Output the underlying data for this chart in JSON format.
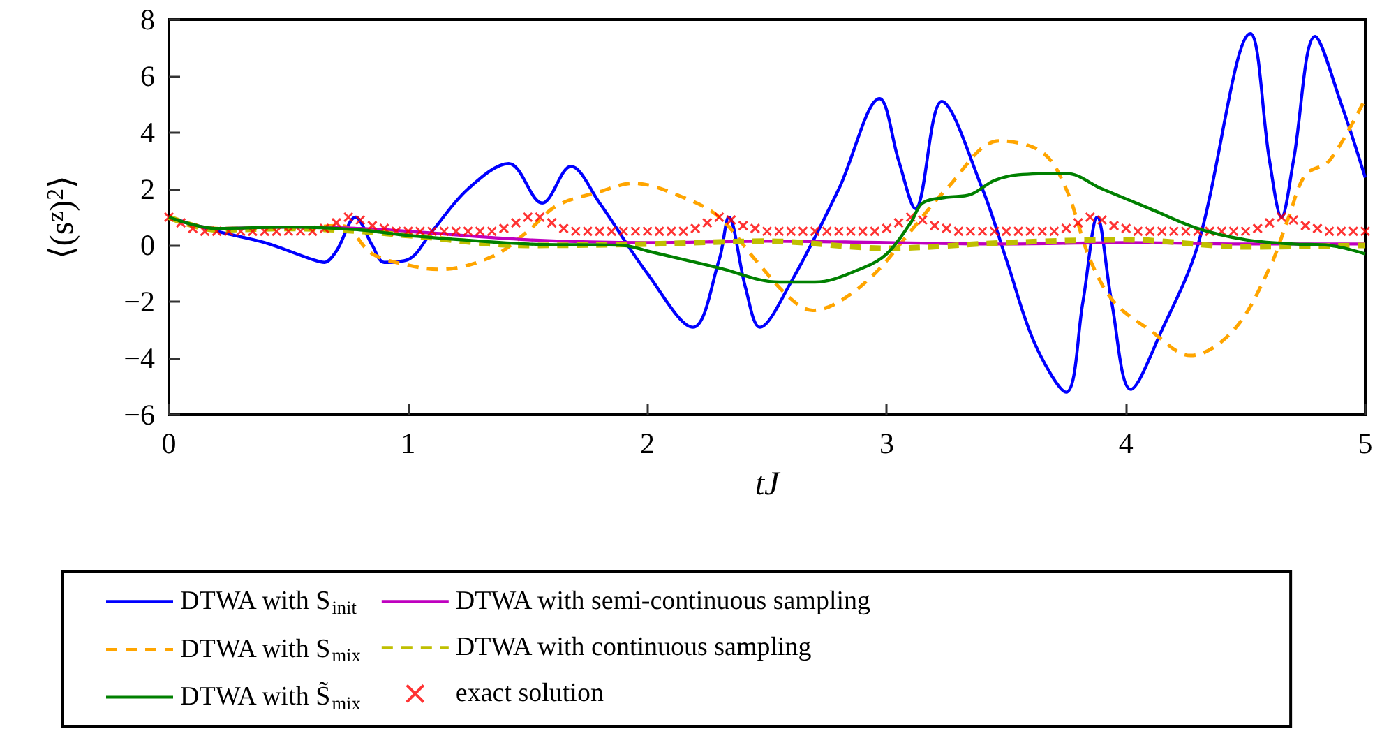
{
  "chart_data": {
    "type": "line",
    "xlabel": "tJ",
    "ylabel": "⟨(s$^{z}$)$^{2}$⟩",
    "xlim": [
      0,
      5
    ],
    "ylim": [
      -6,
      8
    ],
    "xticks": [
      0,
      1,
      2,
      3,
      4,
      5
    ],
    "yticks": [
      -6,
      -4,
      -2,
      0,
      2,
      4,
      6,
      8
    ],
    "grid": false,
    "legend": "bottom",
    "series": [
      {
        "name": "DTWA with S$_{init}$",
        "color": "#0000ff",
        "line_style": "solid",
        "marker": "none",
        "x": [
          0,
          0.2,
          0.4,
          0.6,
          0.65,
          0.7,
          0.78,
          0.85,
          0.9,
          1.0,
          1.1,
          1.25,
          1.42,
          1.56,
          1.68,
          1.8,
          2.0,
          2.19,
          2.3,
          2.34,
          2.41,
          2.47,
          2.6,
          2.8,
          2.97,
          3.05,
          3.12,
          3.23,
          3.4,
          3.5,
          3.62,
          3.75,
          3.82,
          3.88,
          3.94,
          4.02,
          4.15,
          4.3,
          4.52,
          4.6,
          4.65,
          4.7,
          4.79,
          4.9,
          5.0
        ],
        "values": [
          1.0,
          0.5,
          0.1,
          -0.5,
          -0.6,
          -0.2,
          1.0,
          0.0,
          -0.6,
          -0.5,
          0.5,
          2.0,
          2.9,
          1.5,
          2.8,
          1.5,
          -1.0,
          -2.9,
          -0.5,
          1.0,
          -1.5,
          -2.9,
          -1.3,
          2.0,
          5.2,
          3.0,
          1.3,
          5.1,
          2.0,
          -0.5,
          -3.5,
          -5.2,
          -2.0,
          1.0,
          -2.0,
          -5.1,
          -3.0,
          0.0,
          7.5,
          3.0,
          1.0,
          3.0,
          7.4,
          5.0,
          2.4
        ]
      },
      {
        "name": "DTWA with S$_{mix}$",
        "color": "#ffa500",
        "line_style": "dashed",
        "marker": "none",
        "x": [
          0,
          0.2,
          0.5,
          0.72,
          0.85,
          1.0,
          1.13,
          1.35,
          1.5,
          1.62,
          1.8,
          1.94,
          2.15,
          2.3,
          2.45,
          2.6,
          2.69,
          2.8,
          2.95,
          3.1,
          3.25,
          3.47,
          3.65,
          3.75,
          3.85,
          3.95,
          4.1,
          4.27,
          4.45,
          4.6,
          4.68,
          4.75,
          4.85,
          5.0
        ],
        "values": [
          1.0,
          0.6,
          0.6,
          0.7,
          -0.3,
          -0.7,
          -0.85,
          -0.4,
          0.5,
          1.4,
          1.9,
          2.2,
          1.7,
          1.0,
          -0.5,
          -1.9,
          -2.3,
          -2.0,
          -1.0,
          0.5,
          2.0,
          3.7,
          3.3,
          2.0,
          -0.5,
          -2.0,
          -3.0,
          -3.9,
          -3.0,
          -0.8,
          1.0,
          2.5,
          3.0,
          5.2
        ]
      },
      {
        "name": "DTWA with S̃$_{mix}$",
        "color": "#008000",
        "line_style": "solid",
        "marker": "none",
        "x": [
          0,
          0.2,
          0.5,
          0.8,
          1.0,
          1.5,
          1.9,
          2.0,
          2.3,
          2.55,
          2.7,
          2.9,
          3.0,
          3.1,
          3.15,
          3.25,
          3.35,
          3.45,
          3.55,
          3.75,
          3.9,
          4.1,
          4.3,
          4.5,
          4.7,
          4.85,
          5.0
        ],
        "values": [
          1.0,
          0.6,
          0.65,
          0.55,
          0.35,
          0.05,
          0.0,
          -0.2,
          -0.8,
          -1.3,
          -1.3,
          -0.8,
          -0.3,
          0.8,
          1.5,
          1.7,
          1.8,
          2.3,
          2.5,
          2.55,
          2.0,
          1.3,
          0.6,
          0.2,
          0.05,
          0.0,
          -0.3
        ]
      },
      {
        "name": "DTWA with semi-continuous sampling",
        "color": "#bf00bf",
        "line_style": "solid",
        "marker": "none",
        "x": [
          0,
          0.2,
          0.5,
          0.8,
          1.0,
          1.5,
          2.0,
          2.5,
          3.0,
          3.5,
          4.0,
          4.5,
          5.0
        ],
        "values": [
          1.0,
          0.6,
          0.65,
          0.6,
          0.5,
          0.2,
          0.1,
          0.15,
          0.1,
          0.05,
          0.1,
          0.05,
          0.05
        ]
      },
      {
        "name": "DTWA with continuous sampling",
        "color": "#bfbf00",
        "line_style": "dashed",
        "marker": "none",
        "x": [
          0,
          0.2,
          0.5,
          0.8,
          1.0,
          1.5,
          2.0,
          2.5,
          3.0,
          3.5,
          4.0,
          4.5,
          5.0
        ],
        "values": [
          1.0,
          0.55,
          0.6,
          0.5,
          0.35,
          0.0,
          0.05,
          0.15,
          -0.1,
          0.1,
          0.2,
          -0.05,
          0.0
        ]
      },
      {
        "name": "exact solution",
        "type": "scatter",
        "color": "#ff0000",
        "marker": "cross",
        "x": [
          0,
          0.05,
          0.1,
          0.15,
          0.2,
          0.25,
          0.3,
          0.35,
          0.4,
          0.45,
          0.5,
          0.55,
          0.6,
          0.65,
          0.7,
          0.75,
          0.8,
          0.85,
          0.9,
          0.95,
          1.0,
          1.05,
          1.1,
          1.15,
          1.2,
          1.25,
          1.3,
          1.35,
          1.4,
          1.45,
          1.5,
          1.55,
          1.6,
          1.65,
          1.7,
          1.75,
          1.8,
          1.85,
          1.9,
          1.95,
          2.0,
          2.05,
          2.1,
          2.15,
          2.2,
          2.25,
          2.3,
          2.35,
          2.4,
          2.45,
          2.5,
          2.55,
          2.6,
          2.65,
          2.7,
          2.75,
          2.8,
          2.85,
          2.9,
          2.95,
          3.0,
          3.05,
          3.1,
          3.15,
          3.2,
          3.25,
          3.3,
          3.35,
          3.4,
          3.45,
          3.5,
          3.55,
          3.6,
          3.65,
          3.7,
          3.75,
          3.8,
          3.85,
          3.9,
          3.95,
          4.0,
          4.05,
          4.1,
          4.15,
          4.2,
          4.25,
          4.3,
          4.35,
          4.4,
          4.45,
          4.5,
          4.55,
          4.6,
          4.65,
          4.7,
          4.75,
          4.8,
          4.85,
          4.9,
          4.95,
          5.0
        ],
        "values": [
          1.0,
          0.8,
          0.6,
          0.5,
          0.5,
          0.5,
          0.5,
          0.5,
          0.5,
          0.5,
          0.5,
          0.5,
          0.5,
          0.6,
          0.8,
          1.0,
          0.9,
          0.7,
          0.6,
          0.5,
          0.5,
          0.5,
          0.5,
          0.5,
          0.5,
          0.5,
          0.5,
          0.5,
          0.6,
          0.8,
          1.0,
          1.0,
          0.8,
          0.6,
          0.5,
          0.5,
          0.5,
          0.5,
          0.5,
          0.5,
          0.5,
          0.5,
          0.5,
          0.5,
          0.6,
          0.8,
          1.0,
          0.9,
          0.7,
          0.6,
          0.5,
          0.5,
          0.5,
          0.5,
          0.5,
          0.5,
          0.5,
          0.5,
          0.5,
          0.5,
          0.6,
          0.8,
          1.0,
          0.9,
          0.7,
          0.6,
          0.5,
          0.5,
          0.5,
          0.5,
          0.5,
          0.5,
          0.5,
          0.5,
          0.5,
          0.6,
          0.8,
          1.0,
          0.9,
          0.7,
          0.6,
          0.5,
          0.5,
          0.5,
          0.5,
          0.5,
          0.5,
          0.5,
          0.5,
          0.5,
          0.5,
          0.6,
          0.8,
          1.0,
          0.9,
          0.7,
          0.6,
          0.5,
          0.5,
          0.5,
          0.5
        ]
      }
    ]
  }
}
